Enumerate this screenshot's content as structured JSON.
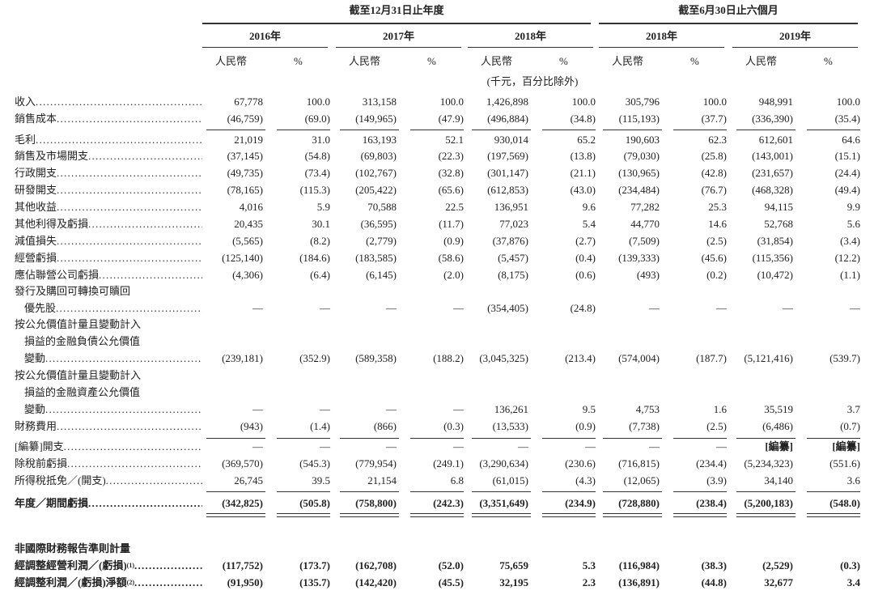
{
  "header": {
    "periods": [
      "截至12月31日止年度",
      "截至6月30日止六個月"
    ],
    "years": [
      "2016年",
      "2017年",
      "2018年",
      "2018年",
      "2019年"
    ],
    "columns": [
      "人民幣",
      "%",
      "人民幣",
      "%",
      "人民幣",
      "%",
      "人民幣",
      "%",
      "人民幣",
      "%"
    ],
    "note": "(千元，百分比除外)"
  },
  "rows": [
    {
      "label": [
        "收入"
      ],
      "values": [
        "67,778",
        "100.0",
        "313,158",
        "100.0",
        "1,426,898",
        "100.0",
        "305,796",
        "100.0",
        "948,991",
        "100.0"
      ]
    },
    {
      "label": [
        "銷售成本"
      ],
      "values": [
        "(46,759)",
        "(69.0)",
        "(149,965)",
        "(47.9)",
        "(496,884)",
        "(34.8)",
        "(115,193)",
        "(37.7)",
        "(336,390)",
        "(35.4)"
      ]
    },
    {
      "label": [
        "毛利"
      ],
      "values": [
        "21,019",
        "31.0",
        "163,193",
        "52.1",
        "930,014",
        "65.2",
        "190,603",
        "62.3",
        "612,601",
        "64.6"
      ]
    },
    {
      "label": [
        "銷售及市場開支"
      ],
      "values": [
        "(37,145)",
        "(54.8)",
        "(69,803)",
        "(22.3)",
        "(197,569)",
        "(13.8)",
        "(79,030)",
        "(25.8)",
        "(143,001)",
        "(15.1)"
      ]
    },
    {
      "label": [
        "行政開支"
      ],
      "values": [
        "(49,735)",
        "(73.4)",
        "(102,767)",
        "(32.8)",
        "(301,147)",
        "(21.1)",
        "(130,965)",
        "(42.8)",
        "(231,657)",
        "(24.4)"
      ]
    },
    {
      "label": [
        "研發開支"
      ],
      "values": [
        "(78,165)",
        "(115.3)",
        "(205,422)",
        "(65.6)",
        "(612,853)",
        "(43.0)",
        "(234,484)",
        "(76.7)",
        "(468,328)",
        "(49.4)"
      ]
    },
    {
      "label": [
        "其他收益"
      ],
      "values": [
        "4,016",
        "5.9",
        "70,588",
        "22.5",
        "136,951",
        "9.6",
        "77,282",
        "25.3",
        "94,115",
        "9.9"
      ]
    },
    {
      "label": [
        "其他利得及虧損"
      ],
      "values": [
        "20,435",
        "30.1",
        "(36,595)",
        "(11.7)",
        "77,023",
        "5.4",
        "44,770",
        "14.6",
        "52,768",
        "5.6"
      ]
    },
    {
      "label": [
        "減值損失"
      ],
      "values": [
        "(5,565)",
        "(8.2)",
        "(2,779)",
        "(0.9)",
        "(37,876)",
        "(2.7)",
        "(7,509)",
        "(2.5)",
        "(31,854)",
        "(3.4)"
      ]
    },
    {
      "label": [
        "經營虧損"
      ],
      "values": [
        "(125,140)",
        "(184.6)",
        "(183,585)",
        "(58.6)",
        "(5,457)",
        "(0.4)",
        "(139,333)",
        "(45.6)",
        "(115,356)",
        "(12.2)"
      ]
    },
    {
      "label": [
        "應佔聯營公司虧損"
      ],
      "values": [
        "(4,306)",
        "(6.4)",
        "(6,145)",
        "(2.0)",
        "(8,175)",
        "(0.6)",
        "(493)",
        "(0.2)",
        "(10,472)",
        "(1.1)"
      ]
    },
    {
      "label": [
        "發行及購回可轉換可贖回",
        "優先股"
      ],
      "values": [
        "—",
        "—",
        "—",
        "—",
        "(354,405)",
        "(24.8)",
        "—",
        "—",
        "—",
        "—"
      ]
    },
    {
      "label": [
        "按公允價值計量且變動計入",
        "損益的金融負債公允價值",
        "變動"
      ],
      "values": [
        "(239,181)",
        "(352.9)",
        "(589,358)",
        "(188.2)",
        "(3,045,325)",
        "(213.4)",
        "(574,004)",
        "(187.7)",
        "(5,121,416)",
        "(539.7)"
      ]
    },
    {
      "label": [
        "按公允價值計量且變動計入",
        "損益的金融資產公允價值",
        "變動"
      ],
      "values": [
        "—",
        "—",
        "—",
        "—",
        "136,261",
        "9.5",
        "4,753",
        "1.6",
        "35,519",
        "3.7"
      ]
    },
    {
      "label": [
        "財務費用"
      ],
      "values": [
        "(943)",
        "(1.4)",
        "(866)",
        "(0.3)",
        "(13,533)",
        "(0.9)",
        "(7,738)",
        "(2.5)",
        "(6,486)",
        "(0.7)"
      ]
    },
    {
      "label": [
        "[編纂]開支"
      ],
      "values": [
        "—",
        "—",
        "—",
        "—",
        "—",
        "—",
        "—",
        "—",
        "[編纂]",
        "[編纂]"
      ]
    },
    {
      "label": [
        "除稅前虧損"
      ],
      "values": [
        "(369,570)",
        "(545.3)",
        "(779,954)",
        "(249.1)",
        "(3,290,634)",
        "(230.6)",
        "(716,815)",
        "(234.4)",
        "(5,234,323)",
        "(551.6)"
      ]
    },
    {
      "label": [
        "所得稅抵免／(開支)"
      ],
      "values": [
        "26,745",
        "39.5",
        "21,154",
        "6.8",
        "(61,015)",
        "(4.3)",
        "(12,065)",
        "(3.9)",
        "34,140",
        "3.6"
      ]
    },
    {
      "label": [
        "年度／期間虧損"
      ],
      "values": [
        "(342,825)",
        "(505.8)",
        "(758,800)",
        "(242.3)",
        "(3,351,649)",
        "(234.9)",
        "(728,880)",
        "(238.4)",
        "(5,200,183)",
        "(548.0)"
      ]
    }
  ],
  "non_ifrs": {
    "title": "非國際財務報告準則計量",
    "rows": [
      {
        "label": [
          "經調整經營利潤／(虧損)"
        ],
        "note": "(1)",
        "values": [
          "(117,752)",
          "(173.7)",
          "(162,708)",
          "(52.0)",
          "75,659",
          "5.3",
          "(116,984)",
          "(38.3)",
          "(2,529)",
          "(0.3)"
        ]
      },
      {
        "label": [
          "經調整利潤／(虧損)淨額"
        ],
        "note": "(2)",
        "values": [
          "(91,950)",
          "(135.7)",
          "(142,420)",
          "(45.5)",
          "32,195",
          "2.3",
          "(136,891)",
          "(44.8)",
          "32,677",
          "3.4"
        ]
      }
    ]
  }
}
